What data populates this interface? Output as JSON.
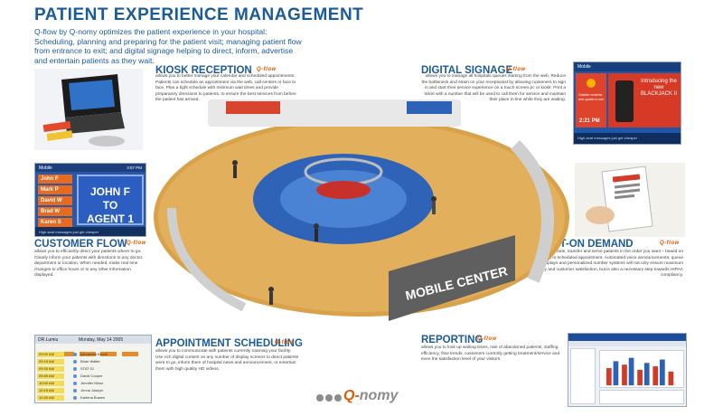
{
  "title": "PATIENT EXPERIENCE MANAGEMENT",
  "intro": "Q-flow by Q-nomy optimizes the patient experience in your hospital: Scheduling, planning and preparing for the patient visit; managing patient flow from entrance to exit; and digital signage helping to direct, inform, advertise and entertain patients as they wait.",
  "brand_word": "Q-flow",
  "kiosk": {
    "heading": "KIOSK RECEPTION",
    "brand": "Q-flow",
    "text": "allows you to better manage your calendar and scheduled appointments. Patients can schedule an appointment via the web, call centers or face to face. Plan a tight schedule with minimum wait times and provide preparatory directions to patients, to ensure the best services from before the patient has arrived."
  },
  "signage": {
    "heading": "DIGITAL SIGNAGE",
    "brand": "Q-flow",
    "text": "allows you to manage all hospitals queues starting from the web. Reduce the bottleneck and strain on your receptionist by allowing customers to sign in and start their service experience on a touch screen pc or kiosk. Print a ticket with a number that will be used to call them for service and maintain their place in line while they are waiting.",
    "panel_top": "Mobile",
    "panel_headline": "Introducing the new BLACKJACK II",
    "panel_small": "Outside contents and update to see",
    "panel_time": "2:21 PM",
    "panel_bottom": "High-seat messages just get cheaper"
  },
  "customer_flow": {
    "heading": "CUSTOMER FLOW",
    "brand": "Q-flow",
    "text": "allows you to efficiently direct your patients where to go. Clearly inform your patients with directions to any doctor, department or location. When needed, make real time changes to office hours or to any other information displayed.",
    "panel_top": "Mobile",
    "panel_time": "3:57 PM",
    "names": [
      "John F",
      "Mark P",
      "David W",
      "Brad W",
      "Karen S"
    ],
    "agent_line1": "JOHN F",
    "agent_line2": "TO",
    "agent_line3": "AGENT 1",
    "panel_bottom": "High-seat messages just get cheaper"
  },
  "print_on_demand": {
    "heading": "PRINT-ON DEMAND",
    "brand": "Q-flow",
    "text": "allows you to prioritize, route, transfer and serve patients in the order you want – based on profile, reason for visit or scheduled appointment. Automated voice announcements, queue visualization on displays and personalized number systems will not only ensure maximum efficiency and customer satisfaction, but is also a necessary step towards HIPAA compliancy."
  },
  "appointment": {
    "heading": "APPOINTMENT SCHEDULING",
    "brand": "Q-flow",
    "text": "allows you to communicate with patients currently roaming your facility. Use rich digital content on any number of display screens to direct patients were to go, inform them of hospital news and announcement, or entertain them with high quality HD videos.",
    "panel_name": "DR.Lumiu",
    "panel_date": "Monday, May 14 2005",
    "rows": [
      {
        "time": "09:00 AM",
        "name": "Alexandra Brook"
      },
      {
        "time": "09:15 AM",
        "name": "Brian Walter"
      },
      {
        "time": "09:30 AM",
        "name": "STAT 01"
      },
      {
        "time": "09:45 AM",
        "name": "David Cooper"
      },
      {
        "time": "10:00 AM",
        "name": "Jennifer Miron"
      },
      {
        "time": "10:15 AM",
        "name": "Jenna Joseph"
      },
      {
        "time": "10:30 AM",
        "name": "Karlena Bowen"
      }
    ]
  },
  "reporting": {
    "heading": "REPORTING",
    "brand": "Q-flow",
    "text": "allows you to look up waiting times, rate of abandoned patients, staffing efficiency, flow trends, customers currently getting treatment/service and even the satisfaction level of your visitors."
  },
  "scene": {
    "sign": "MOBILE CENTER"
  },
  "logo": {
    "prefix": "Q-",
    "name": "nomy"
  },
  "colors": {
    "heading_blue": "#1b5b98",
    "brand_orange": "#e05a00",
    "floor_wood": "#d9a24a",
    "floor_blue": "#2f63b8"
  }
}
